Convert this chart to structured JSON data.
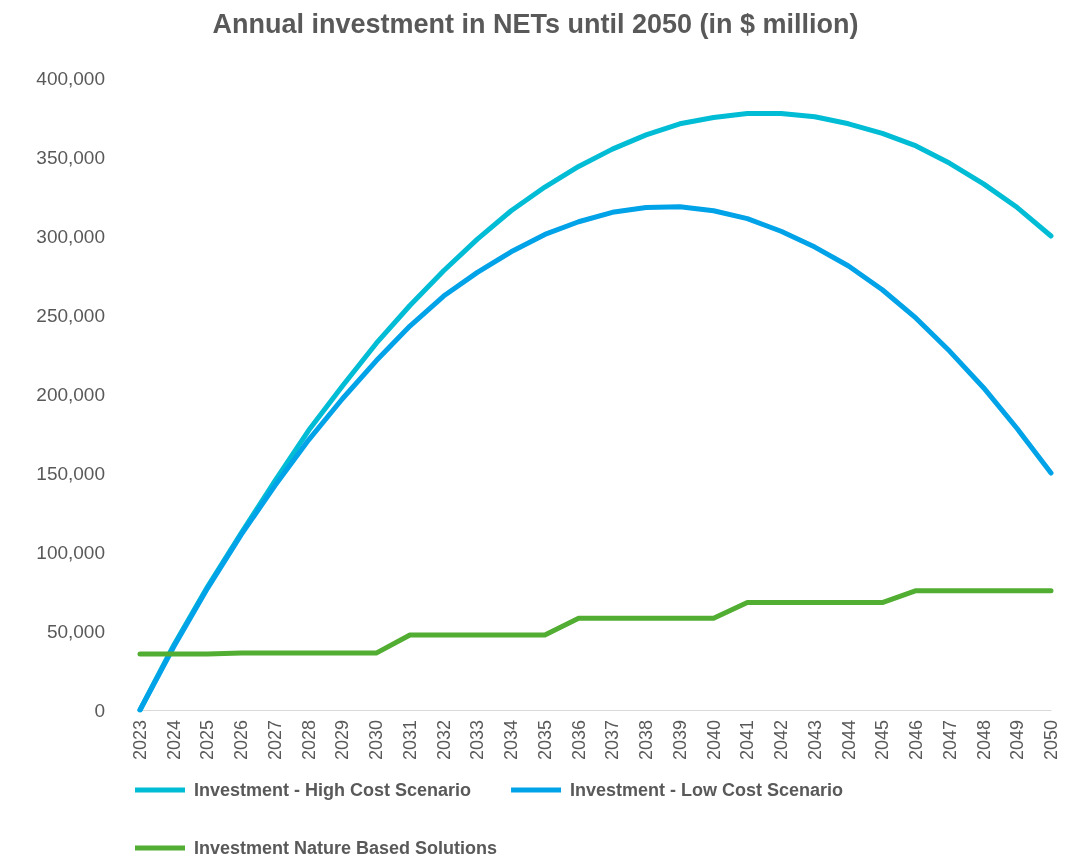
{
  "chart_data": {
    "type": "line",
    "title": "Annual investment in NETs until 2050 (in $ million)",
    "categories": [
      "2023",
      "2024",
      "2025",
      "2026",
      "2027",
      "2028",
      "2029",
      "2030",
      "2031",
      "2032",
      "2033",
      "2034",
      "2035",
      "2036",
      "2037",
      "2038",
      "2039",
      "2040",
      "2041",
      "2042",
      "2043",
      "2044",
      "2045",
      "2046",
      "2047",
      "2048",
      "2049",
      "2050"
    ],
    "series": [
      {
        "name": "Investment - High Cost Scenario",
        "color": "#00bcd4",
        "values": [
          0,
          41000,
          78000,
          112000,
          145000,
          177000,
          205000,
          232000,
          256000,
          278000,
          298000,
          316000,
          331000,
          344000,
          355000,
          364000,
          371000,
          375000,
          377500,
          377500,
          375500,
          371000,
          365000,
          357000,
          346000,
          333000,
          318000,
          300000
        ]
      },
      {
        "name": "Investment - Low Cost Scenario",
        "color": "#00a2e8",
        "values": [
          0,
          40000,
          77000,
          111000,
          142000,
          171000,
          197000,
          221000,
          243000,
          262000,
          277000,
          290000,
          301000,
          309000,
          315000,
          318000,
          318500,
          316000,
          311000,
          303000,
          293000,
          281000,
          266000,
          248000,
          227000,
          204000,
          178000,
          150000
        ]
      },
      {
        "name": "Investment Nature Based Solutions",
        "color": "#52ae32",
        "values": [
          35500,
          35500,
          35500,
          36000,
          36000,
          36000,
          36000,
          36000,
          47500,
          47500,
          47500,
          47500,
          47500,
          58000,
          58000,
          58000,
          58000,
          58000,
          68000,
          68000,
          68000,
          68000,
          68000,
          75500,
          75500,
          75500,
          75500,
          75500
        ]
      }
    ],
    "ylim": [
      0,
      400000
    ],
    "yticks": [
      0,
      {
        "value": 50000,
        "label": "50,000"
      },
      {
        "value": 100000,
        "label": "100,000"
      },
      {
        "value": 150000,
        "label": "150,000"
      },
      {
        "value": 200000,
        "label": "200,000"
      },
      {
        "value": 250000,
        "label": "250,000"
      },
      {
        "value": 300000,
        "label": "300,000"
      },
      {
        "value": 350000,
        "label": "350,000"
      },
      {
        "value": 400000,
        "label": "400,000"
      }
    ],
    "grid": false,
    "legend": "bottom",
    "marker": "none",
    "line_style": "solid"
  }
}
